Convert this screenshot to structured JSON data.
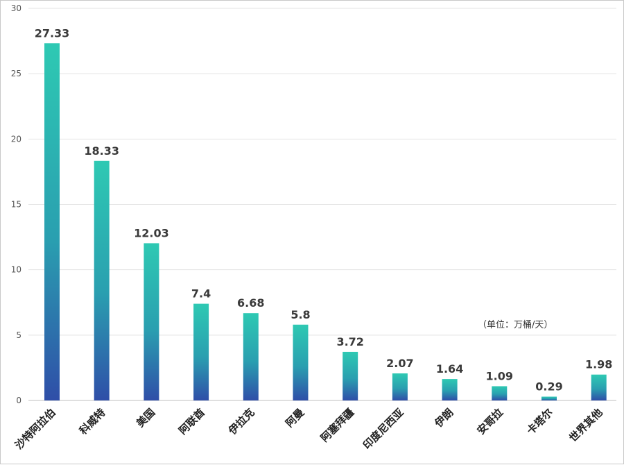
{
  "chart_data": {
    "type": "bar",
    "title": "",
    "xlabel": "",
    "ylabel": "",
    "unit_note": "（单位：万桶/天）",
    "categories": [
      "沙特阿拉伯",
      "科威特",
      "美国",
      "阿联酋",
      "伊拉克",
      "阿曼",
      "阿塞拜疆",
      "印度尼西亚",
      "伊朗",
      "安哥拉",
      "卡塔尔",
      "世界其他"
    ],
    "values": [
      27.33,
      18.33,
      12.03,
      7.4,
      6.68,
      5.8,
      3.72,
      2.07,
      1.64,
      1.09,
      0.29,
      1.98
    ],
    "value_labels": [
      "27.33",
      "18.33",
      "12.03",
      "7.4",
      "6.68",
      "5.8",
      "3.72",
      "2.07",
      "1.64",
      "1.09",
      "0.29",
      "1.98"
    ],
    "ylim": [
      0,
      30
    ],
    "yticks": [
      0,
      5,
      10,
      15,
      20,
      25,
      30
    ],
    "grid": true,
    "legend": "none",
    "colors": {
      "bar_top": "#2ec9b3",
      "bar_bottom": "#2f4ea8"
    }
  }
}
